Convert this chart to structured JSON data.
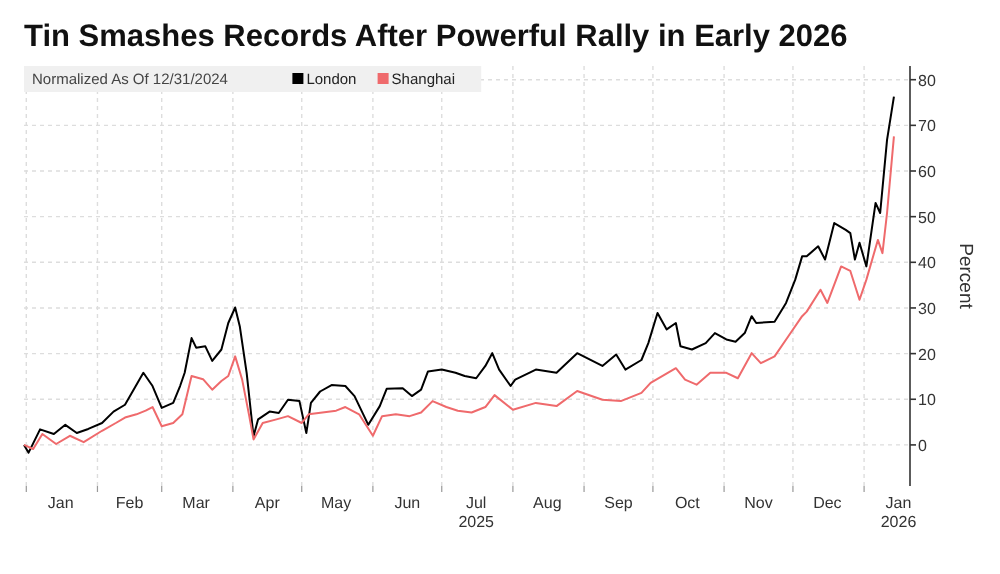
{
  "chart_data": {
    "type": "line",
    "title": "Tin Smashes Records After Powerful Rally in Early 2026",
    "legend_title": "Normalized As Of 12/31/2024",
    "ylabel": "Percent",
    "legend": "top left",
    "grid": true,
    "line_style": "solid",
    "marker": "none",
    "xlim": [
      "2024-12-31",
      "2026-01-21"
    ],
    "ylim": [
      -9,
      83
    ],
    "yticks": [
      0,
      10,
      20,
      30,
      40,
      50,
      60,
      70,
      80
    ],
    "xticks": [
      {
        "value": "2025-01-01",
        "label": null
      },
      {
        "value": "2025-01-16",
        "label": "Jan"
      },
      {
        "value": "2025-02-01",
        "label": null
      },
      {
        "value": "2025-02-15",
        "label": "Feb"
      },
      {
        "value": "2025-03-01",
        "label": null
      },
      {
        "value": "2025-03-16",
        "label": "Mar"
      },
      {
        "value": "2025-04-01",
        "label": null
      },
      {
        "value": "2025-04-16",
        "label": "Apr"
      },
      {
        "value": "2025-05-01",
        "label": null
      },
      {
        "value": "2025-05-16",
        "label": "May"
      },
      {
        "value": "2025-06-01",
        "label": null
      },
      {
        "value": "2025-06-16",
        "label": "Jun"
      },
      {
        "value": "2025-07-01",
        "label": null
      },
      {
        "value": "2025-07-16",
        "label": "Jul 2025"
      },
      {
        "value": "2025-08-01",
        "label": null
      },
      {
        "value": "2025-08-16",
        "label": "Aug"
      },
      {
        "value": "2025-09-01",
        "label": null
      },
      {
        "value": "2025-09-16",
        "label": "Sep"
      },
      {
        "value": "2025-10-01",
        "label": null
      },
      {
        "value": "2025-10-16",
        "label": "Oct"
      },
      {
        "value": "2025-11-01",
        "label": null
      },
      {
        "value": "2025-11-16",
        "label": "Nov"
      },
      {
        "value": "2025-12-01",
        "label": null
      },
      {
        "value": "2025-12-16",
        "label": "Dec"
      },
      {
        "value": "2026-01-01",
        "label": null
      },
      {
        "value": "2026-01-16",
        "label": "Jan 2026"
      }
    ],
    "series": [
      {
        "name": "London",
        "color": "#000000",
        "x": [
          "2024-12-31",
          "2025-01-02",
          "2025-01-07",
          "2025-01-13",
          "2025-01-18",
          "2025-01-23",
          "2025-01-28",
          "2025-02-03",
          "2025-02-08",
          "2025-02-13",
          "2025-02-16",
          "2025-02-21",
          "2025-02-25",
          "2025-03-01",
          "2025-03-06",
          "2025-03-09",
          "2025-03-11",
          "2025-03-14",
          "2025-03-16",
          "2025-03-20",
          "2025-03-23",
          "2025-03-27",
          "2025-03-30",
          "2025-04-02",
          "2025-04-04",
          "2025-04-07",
          "2025-04-10",
          "2025-04-12",
          "2025-04-17",
          "2025-04-21",
          "2025-04-25",
          "2025-04-30",
          "2025-05-03",
          "2025-05-05",
          "2025-05-09",
          "2025-05-14",
          "2025-05-20",
          "2025-05-24",
          "2025-05-30",
          "2025-06-04",
          "2025-06-07",
          "2025-06-14",
          "2025-06-18",
          "2025-06-22",
          "2025-06-25",
          "2025-07-01",
          "2025-07-07",
          "2025-07-11",
          "2025-07-16",
          "2025-07-20",
          "2025-07-23",
          "2025-07-26",
          "2025-07-31",
          "2025-08-02",
          "2025-08-11",
          "2025-08-20",
          "2025-08-29",
          "2025-09-09",
          "2025-09-15",
          "2025-09-19",
          "2025-09-26",
          "2025-09-29",
          "2025-10-03",
          "2025-10-07",
          "2025-10-11",
          "2025-10-13",
          "2025-10-18",
          "2025-10-24",
          "2025-10-28",
          "2025-11-02",
          "2025-11-06",
          "2025-11-10",
          "2025-11-13",
          "2025-11-15",
          "2025-11-23",
          "2025-11-28",
          "2025-12-02",
          "2025-12-05",
          "2025-12-07",
          "2025-12-12",
          "2025-12-15",
          "2025-12-19",
          "2025-12-24",
          "2025-12-26",
          "2025-12-28",
          "2025-12-30",
          "2026-01-02",
          "2026-01-06",
          "2026-01-08",
          "2026-01-11",
          "2026-01-14"
        ],
        "values": [
          0,
          -1.7,
          3.4,
          2.4,
          4.4,
          2.6,
          3.5,
          4.8,
          7.3,
          8.8,
          11.4,
          15.8,
          12.9,
          8.1,
          9.2,
          12.9,
          15.8,
          23.4,
          21.3,
          21.6,
          18.4,
          20.9,
          26.7,
          30.1,
          26,
          15.8,
          1.9,
          5.6,
          7.3,
          7,
          9.9,
          9.6,
          2.6,
          9.2,
          11.7,
          13.1,
          12.9,
          10.7,
          4.4,
          8.5,
          12.3,
          12.4,
          10.7,
          12.1,
          16.1,
          16.5,
          15.8,
          15.1,
          14.6,
          17.3,
          20.1,
          16.5,
          12.9,
          14.3,
          16.5,
          15.8,
          20.1,
          17.3,
          19.8,
          16.5,
          18.6,
          22.3,
          28.9,
          25.3,
          26.7,
          21.6,
          20.9,
          22.3,
          24.5,
          23.1,
          22.6,
          24.5,
          28.2,
          26.7,
          27,
          31.1,
          36.2,
          41.3,
          41.3,
          43.5,
          40.6,
          48.6,
          47.1,
          46.4,
          40.6,
          44.3,
          39.1,
          53,
          50.8,
          66.8,
          76.3
        ]
      },
      {
        "name": "Shanghai",
        "color": "#ef6a6c",
        "x": [
          "2024-12-31",
          "2025-01-04",
          "2025-01-08",
          "2025-01-14",
          "2025-01-20",
          "2025-01-26",
          "2025-02-03",
          "2025-02-09",
          "2025-02-13",
          "2025-02-18",
          "2025-02-22",
          "2025-02-25",
          "2025-03-01",
          "2025-03-06",
          "2025-03-10",
          "2025-03-14",
          "2025-03-19",
          "2025-03-23",
          "2025-03-27",
          "2025-03-30",
          "2025-04-02",
          "2025-04-05",
          "2025-04-08",
          "2025-04-10",
          "2025-04-14",
          "2025-04-20",
          "2025-04-25",
          "2025-05-01",
          "2025-05-04",
          "2025-05-10",
          "2025-05-16",
          "2025-05-20",
          "2025-05-26",
          "2025-06-01",
          "2025-06-05",
          "2025-06-11",
          "2025-06-17",
          "2025-06-22",
          "2025-06-27",
          "2025-07-03",
          "2025-07-08",
          "2025-07-14",
          "2025-07-20",
          "2025-07-24",
          "2025-08-01",
          "2025-08-11",
          "2025-08-20",
          "2025-08-29",
          "2025-09-09",
          "2025-09-17",
          "2025-09-26",
          "2025-09-30",
          "2025-10-11",
          "2025-10-15",
          "2025-10-20",
          "2025-10-26",
          "2025-11-02",
          "2025-11-07",
          "2025-11-13",
          "2025-11-17",
          "2025-11-23",
          "2025-11-29",
          "2025-12-05",
          "2025-12-07",
          "2025-12-13",
          "2025-12-16",
          "2025-12-22",
          "2025-12-26",
          "2025-12-30",
          "2026-01-02",
          "2026-01-07",
          "2026-01-09",
          "2026-01-11",
          "2026-01-14"
        ],
        "values": [
          0,
          -0.9,
          2.4,
          0.2,
          2,
          0.6,
          3.1,
          4.8,
          6,
          6.7,
          7.5,
          8.3,
          4.1,
          4.8,
          6.7,
          15.1,
          14.4,
          12.1,
          14,
          15.1,
          19.4,
          14.4,
          6.7,
          1.2,
          4.8,
          5.6,
          6.3,
          4.8,
          6.7,
          7.1,
          7.5,
          8.3,
          6.7,
          2,
          6.3,
          6.7,
          6.3,
          7.1,
          9.6,
          8.3,
          7.5,
          7.1,
          8.3,
          10.9,
          7.7,
          9.2,
          8.5,
          11.8,
          9.9,
          9.6,
          11.4,
          13.6,
          16.8,
          14.3,
          13.2,
          15.8,
          15.8,
          14.6,
          20.1,
          17.9,
          19.4,
          23.8,
          28.2,
          29.2,
          34,
          31.1,
          39.1,
          38.1,
          31.8,
          36.2,
          44.9,
          42,
          50.8,
          67.6
        ]
      }
    ]
  }
}
